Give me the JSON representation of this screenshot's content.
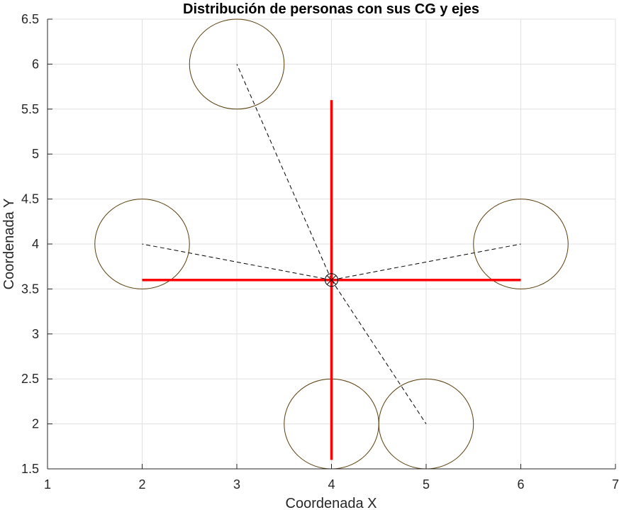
{
  "chart_data": {
    "type": "scatter",
    "title": "Distribución de personas con sus CG y ejes",
    "xlabel": "Coordenada X",
    "ylabel": "Coordenada Y",
    "xlim": [
      1,
      7
    ],
    "ylim": [
      1.5,
      6.5
    ],
    "xticks": [
      "1",
      "2",
      "3",
      "4",
      "5",
      "6",
      "7"
    ],
    "yticks": [
      "1.5",
      "2",
      "2.5",
      "3",
      "3.5",
      "4",
      "4.5",
      "5",
      "5.5",
      "6",
      "6.5"
    ],
    "grid": true,
    "people": [
      {
        "x": 2,
        "y": 4,
        "radius": 0.5
      },
      {
        "x": 3,
        "y": 6,
        "radius": 0.5
      },
      {
        "x": 4,
        "y": 2,
        "radius": 0.5
      },
      {
        "x": 5,
        "y": 2,
        "radius": 0.5
      },
      {
        "x": 6,
        "y": 4,
        "radius": 0.5
      }
    ],
    "center_of_gravity": {
      "x": 4,
      "y": 3.6
    },
    "axes_lines": [
      {
        "orientation": "horizontal",
        "y": 3.6,
        "x_from": 2,
        "x_to": 6
      },
      {
        "orientation": "vertical",
        "x": 4,
        "y_from": 1.6,
        "y_to": 5.6
      }
    ],
    "colors": {
      "person_circle": "#5a3d0a",
      "axis_line": "#ff0000",
      "connector": "#000000",
      "grid": "#e0e0e0",
      "axes": "#262626"
    }
  }
}
